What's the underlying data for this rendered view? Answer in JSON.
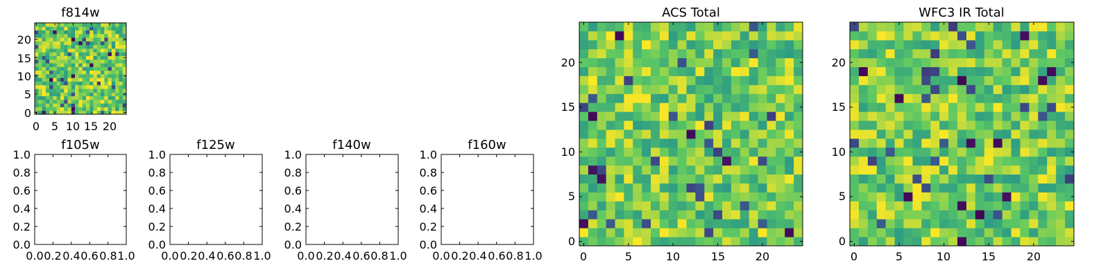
{
  "chart_data": [
    {
      "type": "heatmap",
      "title": "f814w",
      "grid_size": 25,
      "seed": 814,
      "xticks": [
        "0",
        "5",
        "10",
        "15",
        "20"
      ],
      "yticks": [
        "0",
        "5",
        "10",
        "15",
        "20"
      ],
      "xlim": [
        -0.5,
        24.5
      ],
      "ylim": [
        -0.5,
        24.5
      ],
      "colormap": "viridis"
    },
    {
      "type": "empty",
      "title": "f105w",
      "xticks": [
        "0.0",
        "0.2",
        "0.4",
        "0.6",
        "0.8",
        "1.0"
      ],
      "yticks": [
        "0.0",
        "0.2",
        "0.4",
        "0.6",
        "0.8",
        "1.0"
      ],
      "xlim": [
        0,
        1
      ],
      "ylim": [
        0,
        1
      ]
    },
    {
      "type": "empty",
      "title": "f125w",
      "xticks": [
        "0.0",
        "0.2",
        "0.4",
        "0.6",
        "0.8",
        "1.0"
      ],
      "yticks": [
        "0.0",
        "0.2",
        "0.4",
        "0.6",
        "0.8",
        "1.0"
      ],
      "xlim": [
        0,
        1
      ],
      "ylim": [
        0,
        1
      ]
    },
    {
      "type": "empty",
      "title": "f140w",
      "xticks": [
        "0.0",
        "0.2",
        "0.4",
        "0.6",
        "0.8",
        "1.0"
      ],
      "yticks": [
        "0.0",
        "0.2",
        "0.4",
        "0.6",
        "0.8",
        "1.0"
      ],
      "xlim": [
        0,
        1
      ],
      "ylim": [
        0,
        1
      ]
    },
    {
      "type": "empty",
      "title": "f160w",
      "xticks": [
        "0.0",
        "0.2",
        "0.4",
        "0.6",
        "0.8",
        "1.0"
      ],
      "yticks": [
        "0.0",
        "0.2",
        "0.4",
        "0.6",
        "0.8",
        "1.0"
      ],
      "xlim": [
        0,
        1
      ],
      "ylim": [
        0,
        1
      ]
    },
    {
      "type": "heatmap",
      "title": "ACS Total",
      "grid_size": 25,
      "seed": 4242,
      "xticks": [
        "0",
        "5",
        "10",
        "15",
        "20"
      ],
      "yticks": [
        "0",
        "5",
        "10",
        "15",
        "20"
      ],
      "xlim": [
        -0.5,
        24.5
      ],
      "ylim": [
        -0.5,
        24.5
      ],
      "colormap": "viridis"
    },
    {
      "type": "heatmap",
      "title": "WFC3 IR Total",
      "grid_size": 25,
      "seed": 9191,
      "xticks": [
        "0",
        "5",
        "10",
        "15",
        "20"
      ],
      "yticks": [
        "0",
        "5",
        "10",
        "15",
        "20"
      ],
      "xlim": [
        -0.5,
        24.5
      ],
      "ylim": [
        -0.5,
        24.5
      ],
      "colormap": "viridis"
    }
  ]
}
